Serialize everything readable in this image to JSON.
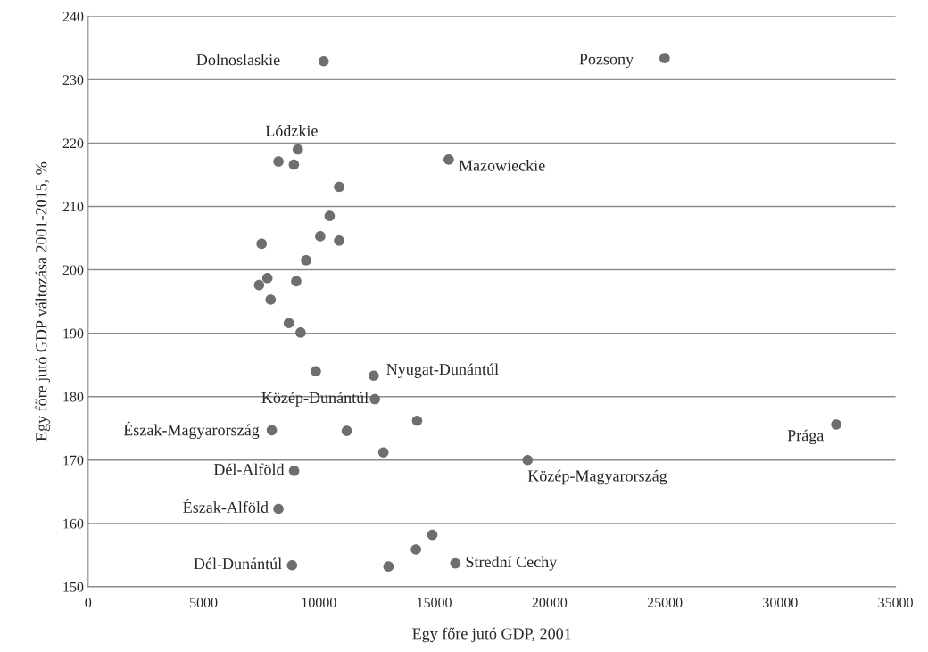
{
  "chart_data": {
    "type": "scatter",
    "xlabel": "Egy főre jutó GDP, 2001",
    "ylabel": "Egy főre jutó GDP változása 2001-2015, %",
    "x": [
      10210,
      24990,
      15630,
      9090,
      8250,
      8920,
      10880,
      10470,
      10060,
      10880,
      7520,
      9450,
      7770,
      7410,
      9020,
      7910,
      8700,
      9210,
      9870,
      12380,
      12430,
      7960,
      11210,
      14260,
      12800,
      8930,
      8250,
      14920,
      14210,
      8840,
      13020,
      15920,
      19050,
      32430
    ],
    "series": [
      {
        "color": "#6e6e6e",
        "values": [
          232.9,
          233.4,
          217.4,
          219.0,
          217.1,
          216.6,
          213.1,
          208.5,
          205.3,
          204.6,
          204.1,
          201.5,
          198.7,
          197.6,
          198.2,
          195.3,
          191.6,
          190.1,
          184.0,
          183.3,
          179.6,
          174.7,
          174.6,
          176.2,
          171.2,
          168.3,
          162.3,
          158.2,
          155.9,
          153.4,
          153.2,
          153.7,
          170.0,
          175.6
        ]
      }
    ],
    "xlim": [
      0,
      35000
    ],
    "xticks": [
      0,
      5000,
      10000,
      15000,
      20000,
      25000,
      30000,
      35000
    ],
    "ylim": [
      150,
      240
    ],
    "yticks": [
      150,
      160,
      170,
      180,
      190,
      200,
      210,
      220,
      230,
      240
    ],
    "grid": "y",
    "marker": "circle",
    "annotations": [
      {
        "text": "Dolnoslaskie",
        "x": 10210,
        "y": 232.9
      },
      {
        "text": "Pozsony",
        "x": 24990,
        "y": 233.4
      },
      {
        "text": "Lódzkie",
        "x": 9090,
        "y": 219.0
      },
      {
        "text": "Mazowieckie",
        "x": 15630,
        "y": 217.4
      },
      {
        "text": "Nyugat-Dunántúl",
        "x": 12380,
        "y": 183.3
      },
      {
        "text": "Közép-Dunántúl",
        "x": 12430,
        "y": 179.6
      },
      {
        "text": "Észak-Magyarország",
        "x": 7960,
        "y": 174.7
      },
      {
        "text": "Dél-Alföld",
        "x": 8930,
        "y": 168.3
      },
      {
        "text": "Észak-Alföld",
        "x": 8250,
        "y": 162.3
      },
      {
        "text": "Dél-Dunántúl",
        "x": 8840,
        "y": 153.4
      },
      {
        "text": "Strední Cechy",
        "x": 15920,
        "y": 153.7
      },
      {
        "text": "Közép-Magyarország",
        "x": 19050,
        "y": 170.0
      },
      {
        "text": "Prága",
        "x": 32430,
        "y": 175.6
      }
    ]
  }
}
